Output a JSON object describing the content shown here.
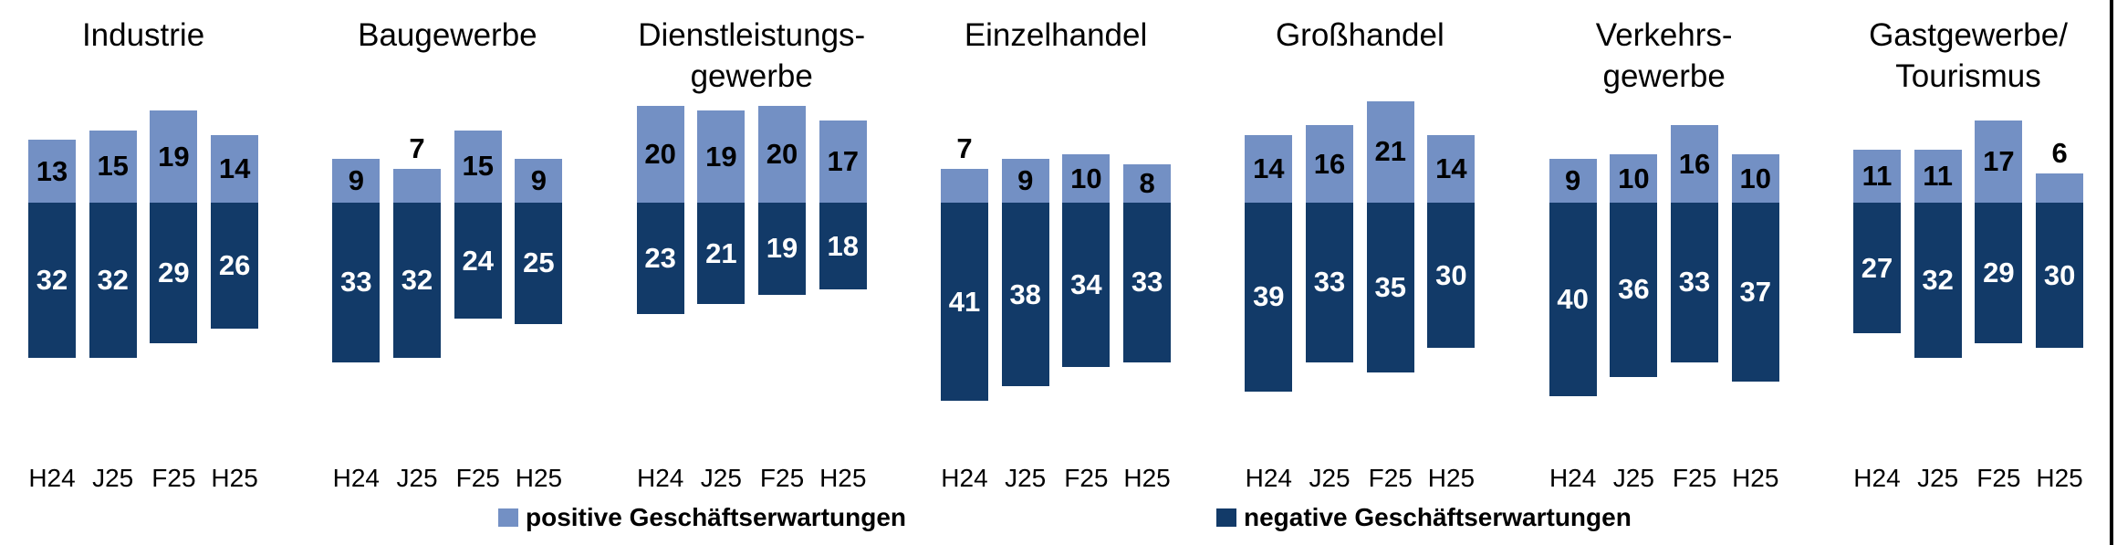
{
  "chart_data": {
    "type": "bar",
    "variant": "diverging-stacked",
    "categories": [
      "H24",
      "J25",
      "F25",
      "H25"
    ],
    "sectors": [
      {
        "title_lines": [
          "Industrie"
        ],
        "positive": [
          13,
          15,
          19,
          14
        ],
        "negative": [
          32,
          32,
          29,
          26
        ]
      },
      {
        "title_lines": [
          "Baugewerbe"
        ],
        "positive": [
          9,
          7,
          15,
          9
        ],
        "negative": [
          33,
          32,
          24,
          25
        ]
      },
      {
        "title_lines": [
          "Dienstleistungs-",
          "gewerbe"
        ],
        "positive": [
          20,
          19,
          20,
          17
        ],
        "negative": [
          23,
          21,
          19,
          18
        ]
      },
      {
        "title_lines": [
          "Einzelhandel"
        ],
        "positive": [
          7,
          9,
          10,
          8
        ],
        "negative": [
          41,
          38,
          34,
          33
        ]
      },
      {
        "title_lines": [
          "Großhandel"
        ],
        "positive": [
          14,
          16,
          21,
          14
        ],
        "negative": [
          39,
          33,
          35,
          30
        ]
      },
      {
        "title_lines": [
          "Verkehrs-",
          "gewerbe"
        ],
        "positive": [
          9,
          10,
          16,
          10
        ],
        "negative": [
          40,
          36,
          33,
          37
        ]
      },
      {
        "title_lines": [
          "Gastgewerbe/",
          "Tourismus"
        ],
        "positive": [
          11,
          11,
          17,
          6
        ],
        "negative": [
          27,
          32,
          29,
          30
        ]
      }
    ],
    "legend": [
      {
        "label": "positive Geschäftserwartungen",
        "color": "#7390C4"
      },
      {
        "label": "negative Geschäftserwartungen",
        "color": "#123A68"
      }
    ],
    "colors": {
      "positive": "#7390C4",
      "negative": "#123A68",
      "value_label_positive": "#000000",
      "value_label_negative": "#FFFFFF"
    },
    "layout_notes": {
      "baseline": "shared zero line, positive up / negative down",
      "small_value_labels_outside_below": 8
    }
  }
}
